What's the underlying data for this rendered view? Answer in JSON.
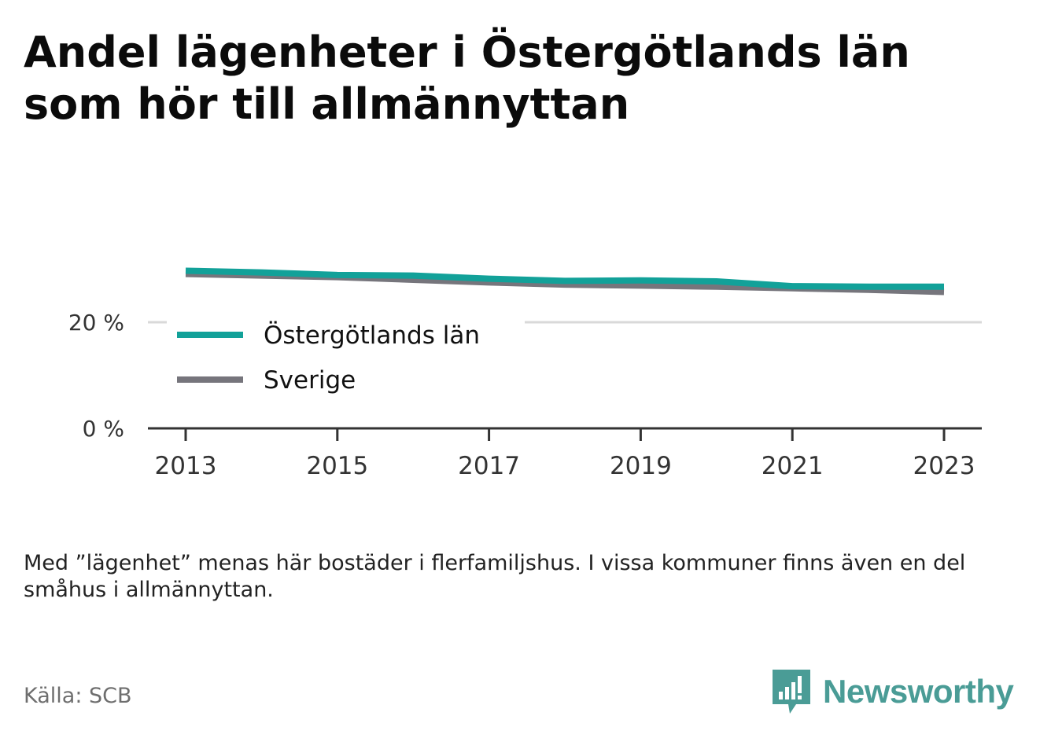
{
  "title_lines": [
    "Andel lägenheter i Östergötlands län",
    "som hör till allmännyttan"
  ],
  "note": "Med ”lägenhet” menas här bostäder i flerfamiljshus. I vissa kommuner finns även en del småhus i allmännyttan.",
  "source": "Källa: SCB",
  "brand": {
    "name": "Newsworthy",
    "color": "#4a9c96",
    "icon": "bar-chart-speech-bubble-icon"
  },
  "chart_data": {
    "type": "line",
    "x": [
      2013,
      2014,
      2015,
      2016,
      2017,
      2018,
      2019,
      2020,
      2021,
      2022,
      2023
    ],
    "series": [
      {
        "name": "Östergötlands län",
        "color": "#12a199",
        "values": [
          29.7,
          29.4,
          28.9,
          28.8,
          28.2,
          27.8,
          27.9,
          27.7,
          26.8,
          26.7,
          26.7
        ]
      },
      {
        "name": "Sverige",
        "color": "#76757c",
        "values": [
          29.1,
          28.8,
          28.5,
          28.0,
          27.5,
          27.1,
          26.9,
          26.7,
          26.4,
          26.1,
          25.7
        ]
      }
    ],
    "xticks": [
      "2013",
      "2015",
      "2017",
      "2019",
      "2021",
      "2023"
    ],
    "yticks": [
      "0 %",
      "20 %"
    ],
    "ytick_values": [
      0,
      20
    ],
    "ylim": [
      0,
      30
    ],
    "grid": true,
    "legend_position": "left, inside plot"
  }
}
